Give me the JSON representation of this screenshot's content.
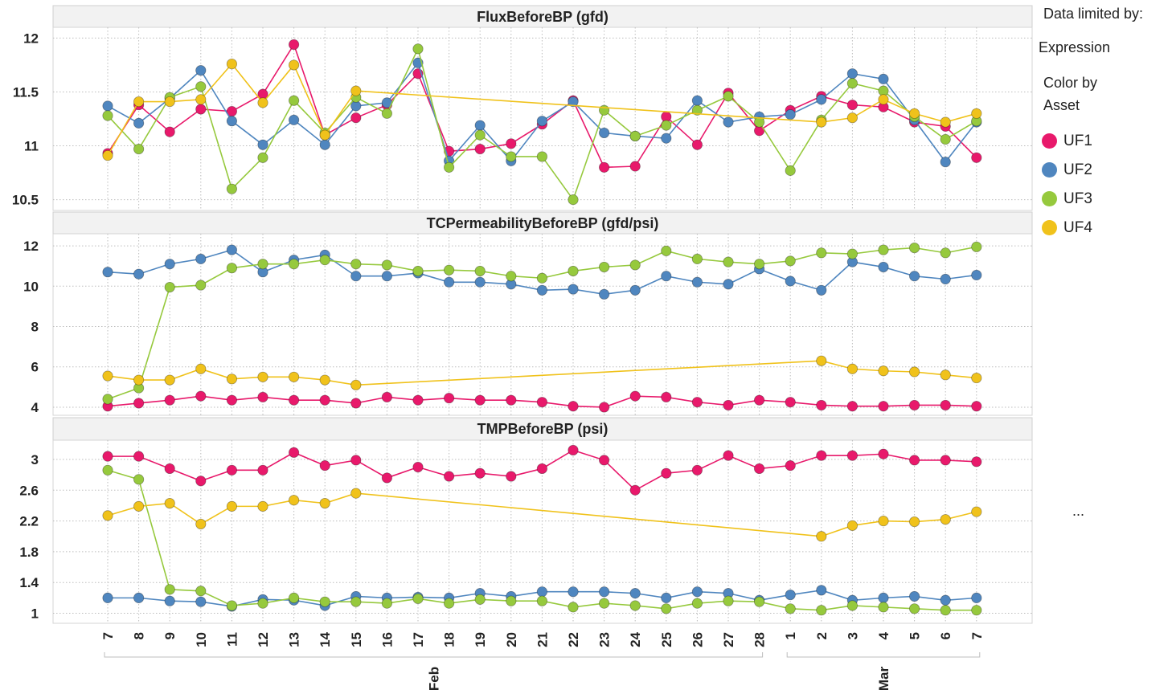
{
  "legend": {
    "data_limited_label": "Data limited by:",
    "expression_label": "Expression",
    "color_by_label": "Color by",
    "asset_label": "Asset",
    "overflow": "..."
  },
  "chart_data": {
    "type": "line",
    "x": [
      "7",
      "8",
      "9",
      "10",
      "11",
      "12",
      "13",
      "14",
      "15",
      "16",
      "17",
      "18",
      "19",
      "20",
      "21",
      "22",
      "23",
      "24",
      "25",
      "26",
      "27",
      "28",
      "1",
      "2",
      "3",
      "4",
      "5",
      "6",
      "7"
    ],
    "x_groups": [
      {
        "label": "Feb",
        "from": 0,
        "to": 21
      },
      {
        "label": "Mar",
        "from": 22,
        "to": 28
      }
    ],
    "series_colors": {
      "UF1": "#e8196b",
      "UF2": "#4f86bf",
      "UF3": "#96c93d",
      "UF4": "#f0c21b"
    },
    "legend_entries": [
      "UF1",
      "UF2",
      "UF3",
      "UF4"
    ],
    "panels": [
      {
        "title": "FluxBeforeBP (gfd)",
        "yticks": [
          10.5,
          11,
          11.5,
          12
        ],
        "ytick_labels": [
          "10.5",
          "11",
          "11.5",
          "12"
        ],
        "ylim": [
          10.4,
          12.1
        ],
        "series": [
          {
            "name": "UF1",
            "values": [
              10.93,
              11.38,
              11.13,
              11.34,
              11.32,
              11.48,
              11.94,
              11.1,
              11.26,
              11.38,
              11.67,
              10.95,
              10.97,
              11.02,
              11.2,
              11.42,
              10.8,
              10.81,
              11.27,
              11.01,
              11.49,
              11.14,
              11.33,
              11.46,
              11.38,
              11.36,
              11.22,
              11.18,
              10.89
            ]
          },
          {
            "name": "UF2",
            "values": [
              11.37,
              11.21,
              11.44,
              11.7,
              11.23,
              11.01,
              11.24,
              11.01,
              11.37,
              11.4,
              11.77,
              10.86,
              11.19,
              10.86,
              11.23,
              11.41,
              11.12,
              11.09,
              11.07,
              11.42,
              11.22,
              11.27,
              11.29,
              11.43,
              11.67,
              11.62,
              11.24,
              10.85,
              11.22
            ]
          },
          {
            "name": "UF3",
            "values": [
              11.28,
              10.97,
              11.45,
              11.55,
              10.6,
              10.89,
              11.42,
              11.12,
              11.45,
              11.3,
              11.9,
              10.8,
              11.1,
              10.9,
              10.9,
              10.5,
              11.33,
              11.09,
              11.19,
              11.33,
              11.46,
              11.22,
              10.77,
              11.24,
              11.58,
              11.51,
              11.27,
              11.06,
              11.23
            ]
          },
          {
            "name": "UF4",
            "values": [
              10.91,
              11.41,
              11.41,
              11.43,
              11.76,
              11.4,
              11.75,
              11.1,
              11.51,
              null,
              null,
              null,
              null,
              null,
              null,
              null,
              null,
              null,
              null,
              null,
              null,
              null,
              null,
              11.22,
              11.26,
              11.43,
              11.3,
              11.22,
              11.3
            ]
          }
        ]
      },
      {
        "title": "TCPermeabilityBeforeBP (gfd/psi)",
        "yticks": [
          4,
          6,
          8,
          10,
          12
        ],
        "ytick_labels": [
          "4",
          "6",
          "8",
          "10",
          "12"
        ],
        "ylim": [
          3.6,
          12.6
        ],
        "series": [
          {
            "name": "UF1",
            "values": [
              4.05,
              4.2,
              4.35,
              4.55,
              4.35,
              4.5,
              4.35,
              4.35,
              4.2,
              4.5,
              4.35,
              4.45,
              4.35,
              4.35,
              4.25,
              4.05,
              4.0,
              4.55,
              4.5,
              4.25,
              4.1,
              4.35,
              4.25,
              4.1,
              4.05,
              4.05,
              4.1,
              4.1,
              4.05
            ]
          },
          {
            "name": "UF2",
            "values": [
              10.7,
              10.6,
              11.1,
              11.35,
              11.8,
              10.7,
              11.3,
              11.55,
              10.5,
              10.5,
              10.65,
              10.2,
              10.2,
              10.1,
              9.8,
              9.85,
              9.6,
              9.8,
              10.5,
              10.2,
              10.1,
              10.85,
              10.25,
              9.8,
              11.2,
              10.95,
              10.5,
              10.35,
              10.55
            ]
          },
          {
            "name": "UF3",
            "values": [
              4.4,
              4.95,
              9.95,
              10.05,
              10.9,
              11.1,
              11.1,
              11.3,
              11.1,
              11.05,
              10.75,
              10.8,
              10.75,
              10.5,
              10.4,
              10.75,
              10.95,
              11.05,
              11.75,
              11.35,
              11.2,
              11.1,
              11.25,
              11.65,
              11.6,
              11.8,
              11.9,
              11.65,
              11.95
            ]
          },
          {
            "name": "UF4",
            "values": [
              5.55,
              5.35,
              5.35,
              5.9,
              5.4,
              5.5,
              5.5,
              5.35,
              5.1,
              null,
              null,
              null,
              null,
              null,
              null,
              null,
              null,
              null,
              null,
              null,
              null,
              null,
              null,
              6.3,
              5.9,
              5.8,
              5.75,
              5.6,
              5.45
            ]
          }
        ]
      },
      {
        "title": "TMPBeforeBP (psi)",
        "yticks": [
          1,
          1.4,
          1.8,
          2.2,
          2.6,
          3
        ],
        "ytick_labels": [
          "1",
          "1.4",
          "1.8",
          "2.2",
          "2.6",
          "3"
        ],
        "ylim": [
          0.87,
          3.25
        ],
        "series": [
          {
            "name": "UF1",
            "values": [
              3.04,
              3.04,
              2.88,
              2.72,
              2.86,
              2.86,
              3.09,
              2.92,
              2.99,
              2.76,
              2.9,
              2.78,
              2.82,
              2.78,
              2.88,
              3.12,
              2.99,
              2.6,
              2.82,
              2.86,
              3.05,
              2.88,
              2.92,
              3.05,
              3.05,
              3.07,
              2.99,
              2.99,
              2.97
            ]
          },
          {
            "name": "UF2",
            "values": [
              1.2,
              1.2,
              1.16,
              1.15,
              1.09,
              1.18,
              1.17,
              1.1,
              1.22,
              1.2,
              1.21,
              1.2,
              1.26,
              1.22,
              1.28,
              1.28,
              1.28,
              1.26,
              1.2,
              1.28,
              1.26,
              1.17,
              1.24,
              1.3,
              1.17,
              1.2,
              1.22,
              1.17,
              1.2
            ]
          },
          {
            "name": "UF3",
            "values": [
              2.86,
              2.74,
              1.31,
              1.29,
              1.1,
              1.13,
              1.2,
              1.15,
              1.15,
              1.13,
              1.19,
              1.13,
              1.18,
              1.16,
              1.16,
              1.08,
              1.13,
              1.1,
              1.06,
              1.13,
              1.16,
              1.15,
              1.06,
              1.04,
              1.1,
              1.08,
              1.06,
              1.04,
              1.04
            ]
          },
          {
            "name": "UF4",
            "values": [
              2.27,
              2.39,
              2.43,
              2.16,
              2.39,
              2.39,
              2.47,
              2.43,
              2.56,
              null,
              null,
              null,
              null,
              null,
              null,
              null,
              null,
              null,
              null,
              null,
              null,
              null,
              null,
              2.0,
              2.14,
              2.2,
              2.19,
              2.22,
              2.32
            ]
          }
        ]
      }
    ]
  }
}
